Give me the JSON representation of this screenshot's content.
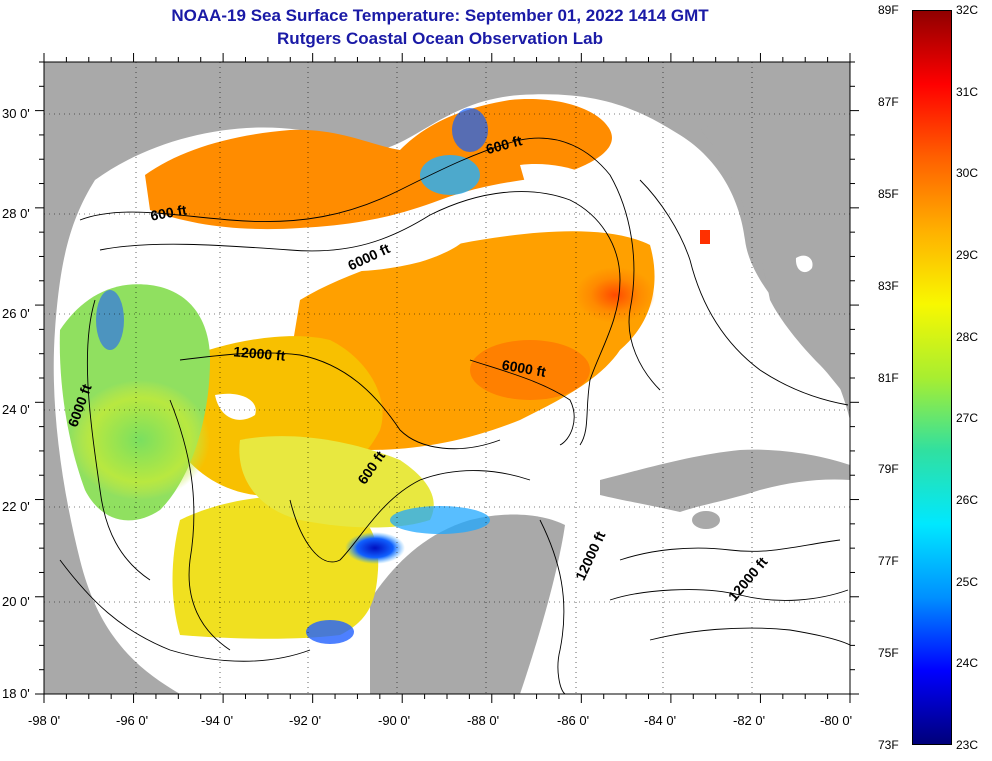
{
  "title": {
    "line1": "NOAA-19 Sea Surface Temperature:  September 01, 2022 1414 GMT",
    "line2": "Rutgers Coastal Ocean Observation Lab"
  },
  "colors": {
    "title": "#1a1aa6",
    "land": "#a9a9a9",
    "no_data": "#ffffff",
    "contour": "#000000"
  },
  "axes": {
    "latitude_labels": [
      "30 0'",
      "28 0'",
      "26 0'",
      "24 0'",
      "22 0'",
      "20 0'",
      "18 0'"
    ],
    "longitude_labels": [
      "-98 0'",
      "-96 0'",
      "-94 0'",
      "-92 0'",
      "-90 0'",
      "-88 0'",
      "-86 0'",
      "-84 0'",
      "-82 0'",
      "-80 0'"
    ],
    "lat_range": [
      18,
      31
    ],
    "lon_range": [
      -98,
      -80
    ]
  },
  "contour_labels": [
    {
      "text": "600 ft",
      "lon": -95.2,
      "lat": 27.8,
      "angle": -10
    },
    {
      "text": "600 ft",
      "lon": -87.7,
      "lat": 29.2,
      "angle": -15
    },
    {
      "text": "6000 ft",
      "lon": -90.7,
      "lat": 26.9,
      "angle": -25
    },
    {
      "text": "12000 ft",
      "lon": -93.2,
      "lat": 24.9,
      "angle": 5
    },
    {
      "text": "6000 ft",
      "lon": -87.3,
      "lat": 24.6,
      "angle": 10
    },
    {
      "text": "6000 ft",
      "lon": -97.1,
      "lat": 23.9,
      "angle": -70
    },
    {
      "text": "600 ft",
      "lon": -90.6,
      "lat": 22.6,
      "angle": -55
    },
    {
      "text": "12000 ft",
      "lon": -85.7,
      "lat": 20.8,
      "angle": -65
    },
    {
      "text": "12000 ft",
      "lon": -82.2,
      "lat": 20.3,
      "angle": -50
    }
  ],
  "colorbar": {
    "fahrenheit_labels": [
      "89F",
      "87F",
      "85F",
      "83F",
      "81F",
      "79F",
      "77F",
      "75F",
      "73F"
    ],
    "celsius_labels": [
      "32C",
      "31C",
      "30C",
      "29C",
      "28C",
      "27C",
      "26C",
      "25C",
      "24C",
      "23C"
    ],
    "min_c": 23,
    "max_c": 32,
    "stops": [
      "#00007a",
      "#0000ff",
      "#0090ff",
      "#00e8ff",
      "#30e0a0",
      "#a8ee30",
      "#f8f800",
      "#ffb000",
      "#ff6000",
      "#ff0000",
      "#900000"
    ]
  }
}
